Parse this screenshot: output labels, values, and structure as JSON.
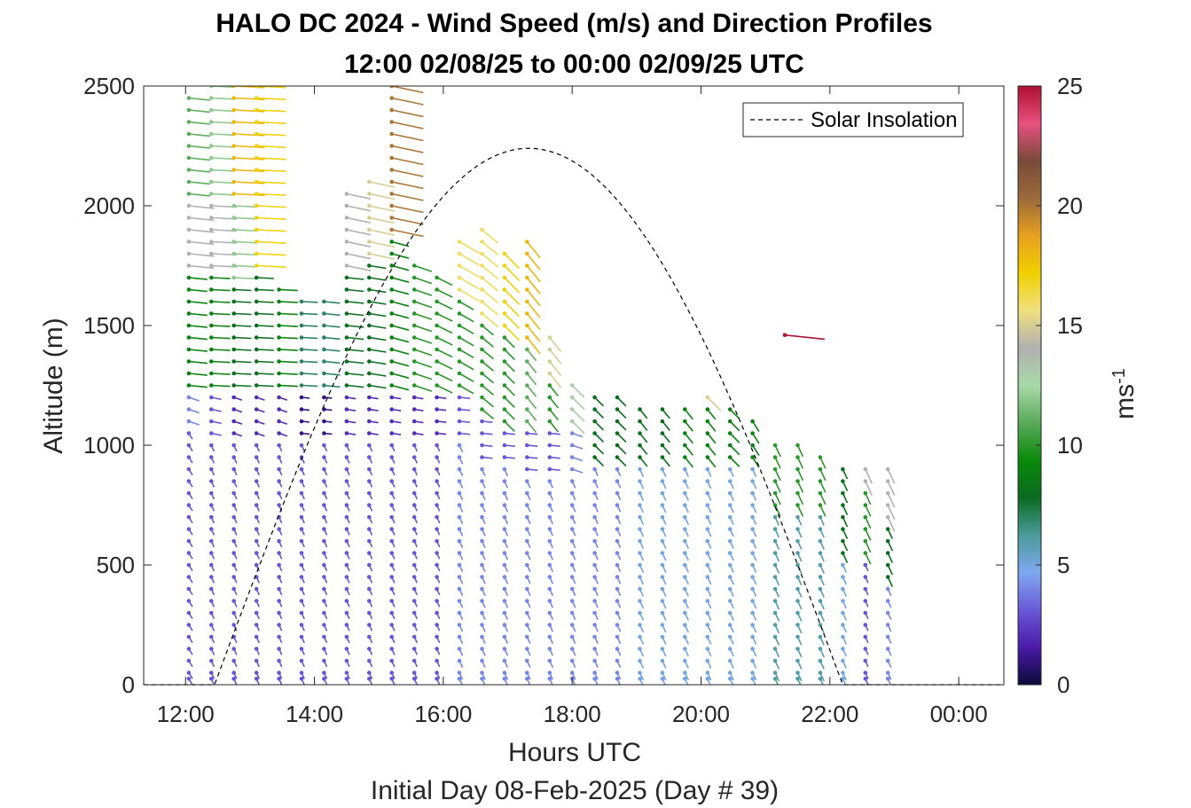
{
  "chart_data": {
    "type": "wind_barb_profile",
    "title": "HALO DC 2024 - Wind Speed (m/s) and Direction Profiles",
    "subtitle": "12:00 02/08/25 to 00:00 02/09/25  UTC",
    "xlabel": "Hours UTC",
    "xlabel2": "Initial Day 08-Feb-2025 (Day # 39)",
    "ylabel": "Altitude (m)",
    "x_ticks": [
      "12:00",
      "14:00",
      "16:00",
      "18:00",
      "20:00",
      "22:00",
      "00:00"
    ],
    "x_tick_hours": [
      12,
      14,
      16,
      18,
      20,
      22,
      24
    ],
    "xlim_hours": [
      11.35,
      24.7
    ],
    "y_ticks": [
      "0",
      "500",
      "1000",
      "1500",
      "2000",
      "2500"
    ],
    "y_tick_values": [
      0,
      500,
      1000,
      1500,
      2000,
      2500
    ],
    "ylim": [
      0,
      2500
    ],
    "colorbar": {
      "label": "ms",
      "label_exponent": "-1",
      "ticks": [
        "0",
        "5",
        "10",
        "15",
        "20",
        "25"
      ],
      "tick_values": [
        0,
        5,
        10,
        15,
        20,
        25
      ],
      "range": [
        0,
        25
      ],
      "stops": [
        "#0b0b3a",
        "#4a1aa8",
        "#6a5ad8",
        "#7fa8f0",
        "#4a9a9a",
        "#0a6a20",
        "#0a8a0a",
        "#5aaa5a",
        "#a8d8a8",
        "#b0b0b0",
        "#f0e080",
        "#f0d000",
        "#e8a020",
        "#9a6a3a",
        "#7a4a3a",
        "#e85080",
        "#b01030"
      ]
    },
    "legend": {
      "label": "Solar Insolation",
      "position": "top-right",
      "style": "dashed black"
    },
    "solar_insolation": {
      "rise_hour": 12.45,
      "peak_hour": 17.3,
      "set_hour": 22.2,
      "peak_altitude_scaled": 2240
    },
    "profile_hours": [
      12.05,
      12.4,
      12.75,
      13.1,
      13.45,
      13.8,
      14.15,
      14.5,
      14.85,
      15.2,
      15.55,
      15.9,
      16.25,
      16.6,
      16.95,
      17.3,
      17.65,
      18.0,
      18.35,
      18.7,
      19.05,
      19.4,
      19.75,
      20.1,
      20.45,
      20.8,
      21.15,
      21.5,
      21.85,
      22.2,
      22.55,
      22.9
    ],
    "wind_profiles": [
      {
        "hour": 12.05,
        "top_m": 2480,
        "layers": [
          {
            "from_m": 0,
            "to_m": 1080,
            "speed": 3,
            "dir": 20
          },
          {
            "from_m": 1080,
            "to_m": 1230,
            "speed": 4,
            "dir": 60
          },
          {
            "from_m": 1230,
            "to_m": 1720,
            "speed": 9,
            "dir": 80
          },
          {
            "from_m": 1720,
            "to_m": 2000,
            "speed": 14,
            "dir": 80
          },
          {
            "from_m": 2000,
            "to_m": 2480,
            "speed": 11,
            "dir": 80
          }
        ]
      },
      {
        "hour": 12.4,
        "top_m": 2500,
        "layers": [
          {
            "from_m": 0,
            "to_m": 1000,
            "speed": 3,
            "dir": 15
          },
          {
            "from_m": 1000,
            "to_m": 1230,
            "speed": 3,
            "dir": 70
          },
          {
            "from_m": 1230,
            "to_m": 1720,
            "speed": 9,
            "dir": 85
          },
          {
            "from_m": 1720,
            "to_m": 2000,
            "speed": 14,
            "dir": 85
          },
          {
            "from_m": 2000,
            "to_m": 2500,
            "speed": 12,
            "dir": 85
          }
        ]
      },
      {
        "hour": 12.75,
        "top_m": 2500,
        "layers": [
          {
            "from_m": 0,
            "to_m": 1000,
            "speed": 3,
            "dir": 15
          },
          {
            "from_m": 1000,
            "to_m": 1230,
            "speed": 2,
            "dir": 60
          },
          {
            "from_m": 1230,
            "to_m": 1650,
            "speed": 8,
            "dir": 85
          },
          {
            "from_m": 1650,
            "to_m": 2000,
            "speed": 12,
            "dir": 85
          },
          {
            "from_m": 2000,
            "to_m": 2500,
            "speed": 18,
            "dir": 85
          }
        ]
      },
      {
        "hour": 13.1,
        "top_m": 2500,
        "layers": [
          {
            "from_m": 0,
            "to_m": 1000,
            "speed": 3,
            "dir": 15
          },
          {
            "from_m": 1000,
            "to_m": 1230,
            "speed": 2,
            "dir": 60
          },
          {
            "from_m": 1230,
            "to_m": 1700,
            "speed": 8,
            "dir": 85
          },
          {
            "from_m": 1700,
            "to_m": 2500,
            "speed": 17,
            "dir": 85
          }
        ]
      },
      {
        "hour": 13.45,
        "top_m": 1660,
        "layers": [
          {
            "from_m": 0,
            "to_m": 1000,
            "speed": 3,
            "dir": 15
          },
          {
            "from_m": 1000,
            "to_m": 1230,
            "speed": 2,
            "dir": 60
          },
          {
            "from_m": 1230,
            "to_m": 1660,
            "speed": 9,
            "dir": 85
          }
        ]
      },
      {
        "hour": 13.8,
        "top_m": 1620,
        "layers": [
          {
            "from_m": 0,
            "to_m": 1000,
            "speed": 3,
            "dir": 15
          },
          {
            "from_m": 1000,
            "to_m": 1230,
            "speed": 1,
            "dir": 80
          },
          {
            "from_m": 1230,
            "to_m": 1620,
            "speed": 7,
            "dir": 85
          }
        ]
      },
      {
        "hour": 14.15,
        "top_m": 1630,
        "layers": [
          {
            "from_m": 0,
            "to_m": 1000,
            "speed": 3,
            "dir": 15
          },
          {
            "from_m": 1000,
            "to_m": 1230,
            "speed": 1,
            "dir": 80
          },
          {
            "from_m": 1230,
            "to_m": 1630,
            "speed": 7,
            "dir": 80
          }
        ]
      },
      {
        "hour": 14.5,
        "top_m": 2060,
        "layers": [
          {
            "from_m": 0,
            "to_m": 1000,
            "speed": 3,
            "dir": 15
          },
          {
            "from_m": 1000,
            "to_m": 1230,
            "speed": 2,
            "dir": 75
          },
          {
            "from_m": 1230,
            "to_m": 1700,
            "speed": 8,
            "dir": 80
          },
          {
            "from_m": 1700,
            "to_m": 2060,
            "speed": 14,
            "dir": 70
          }
        ]
      },
      {
        "hour": 14.85,
        "top_m": 2100,
        "layers": [
          {
            "from_m": 0,
            "to_m": 1000,
            "speed": 3,
            "dir": 15
          },
          {
            "from_m": 1000,
            "to_m": 1230,
            "speed": 2,
            "dir": 75
          },
          {
            "from_m": 1230,
            "to_m": 1750,
            "speed": 8,
            "dir": 75
          },
          {
            "from_m": 1750,
            "to_m": 2100,
            "speed": 15,
            "dir": 70
          }
        ]
      },
      {
        "hour": 15.2,
        "top_m": 2500,
        "layers": [
          {
            "from_m": 0,
            "to_m": 1000,
            "speed": 3,
            "dir": 15
          },
          {
            "from_m": 1000,
            "to_m": 1230,
            "speed": 2,
            "dir": 75
          },
          {
            "from_m": 1230,
            "to_m": 1850,
            "speed": 9,
            "dir": 65
          },
          {
            "from_m": 1850,
            "to_m": 2500,
            "speed": 20,
            "dir": 70
          }
        ]
      },
      {
        "hour": 15.55,
        "top_m": 1780,
        "layers": [
          {
            "from_m": 0,
            "to_m": 1000,
            "speed": 3,
            "dir": 15
          },
          {
            "from_m": 1000,
            "to_m": 1200,
            "speed": 2,
            "dir": 75
          },
          {
            "from_m": 1200,
            "to_m": 1780,
            "speed": 10,
            "dir": 60
          }
        ]
      },
      {
        "hour": 15.9,
        "top_m": 1700,
        "layers": [
          {
            "from_m": 0,
            "to_m": 1000,
            "speed": 3,
            "dir": 15
          },
          {
            "from_m": 1000,
            "to_m": 1200,
            "speed": 2,
            "dir": 80
          },
          {
            "from_m": 1200,
            "to_m": 1700,
            "speed": 10,
            "dir": 50
          }
        ]
      },
      {
        "hour": 16.25,
        "top_m": 1880,
        "layers": [
          {
            "from_m": 0,
            "to_m": 1000,
            "speed": 4,
            "dir": 15
          },
          {
            "from_m": 1000,
            "to_m": 1200,
            "speed": 3,
            "dir": 80
          },
          {
            "from_m": 1200,
            "to_m": 1600,
            "speed": 10,
            "dir": 45
          },
          {
            "from_m": 1600,
            "to_m": 1880,
            "speed": 16,
            "dir": 45
          }
        ]
      },
      {
        "hour": 16.6,
        "top_m": 1930,
        "layers": [
          {
            "from_m": 0,
            "to_m": 900,
            "speed": 4,
            "dir": 15
          },
          {
            "from_m": 900,
            "to_m": 1100,
            "speed": 3,
            "dir": 80
          },
          {
            "from_m": 1100,
            "to_m": 1500,
            "speed": 10,
            "dir": 35
          },
          {
            "from_m": 1500,
            "to_m": 1930,
            "speed": 16,
            "dir": 35
          }
        ]
      },
      {
        "hour": 16.95,
        "top_m": 1800,
        "layers": [
          {
            "from_m": 0,
            "to_m": 900,
            "speed": 4,
            "dir": 15
          },
          {
            "from_m": 900,
            "to_m": 1050,
            "speed": 3,
            "dir": 80
          },
          {
            "from_m": 1050,
            "to_m": 1450,
            "speed": 10,
            "dir": 30
          },
          {
            "from_m": 1450,
            "to_m": 1800,
            "speed": 17,
            "dir": 30
          }
        ]
      },
      {
        "hour": 17.3,
        "top_m": 1860,
        "layers": [
          {
            "from_m": 0,
            "to_m": 850,
            "speed": 4,
            "dir": 15
          },
          {
            "from_m": 850,
            "to_m": 1050,
            "speed": 3,
            "dir": 80
          },
          {
            "from_m": 1050,
            "to_m": 1400,
            "speed": 11,
            "dir": 25
          },
          {
            "from_m": 1400,
            "to_m": 1860,
            "speed": 18,
            "dir": 25
          }
        ]
      },
      {
        "hour": 17.65,
        "top_m": 1450,
        "layers": [
          {
            "from_m": 0,
            "to_m": 850,
            "speed": 4,
            "dir": 15
          },
          {
            "from_m": 850,
            "to_m": 1050,
            "speed": 3,
            "dir": 80
          },
          {
            "from_m": 1050,
            "to_m": 1250,
            "speed": 10,
            "dir": 25
          },
          {
            "from_m": 1250,
            "to_m": 1450,
            "speed": 15,
            "dir": 25
          }
        ]
      },
      {
        "hour": 18.0,
        "top_m": 1280,
        "layers": [
          {
            "from_m": 0,
            "to_m": 850,
            "speed": 4,
            "dir": 15
          },
          {
            "from_m": 850,
            "to_m": 1050,
            "speed": 4,
            "dir": 60
          },
          {
            "from_m": 1050,
            "to_m": 1280,
            "speed": 13,
            "dir": 30
          }
        ]
      },
      {
        "hour": 18.35,
        "top_m": 1200,
        "layers": [
          {
            "from_m": 0,
            "to_m": 900,
            "speed": 4,
            "dir": 15
          },
          {
            "from_m": 900,
            "to_m": 1200,
            "speed": 8,
            "dir": 30
          }
        ]
      },
      {
        "hour": 18.7,
        "top_m": 1200,
        "layers": [
          {
            "from_m": 0,
            "to_m": 900,
            "speed": 4,
            "dir": 15
          },
          {
            "from_m": 900,
            "to_m": 1200,
            "speed": 8,
            "dir": 30
          }
        ]
      },
      {
        "hour": 19.05,
        "top_m": 1190,
        "layers": [
          {
            "from_m": 0,
            "to_m": 900,
            "speed": 5,
            "dir": 15
          },
          {
            "from_m": 900,
            "to_m": 1190,
            "speed": 8,
            "dir": 25
          }
        ]
      },
      {
        "hour": 19.4,
        "top_m": 1180,
        "layers": [
          {
            "from_m": 0,
            "to_m": 900,
            "speed": 5,
            "dir": 15
          },
          {
            "from_m": 900,
            "to_m": 1180,
            "speed": 8,
            "dir": 25
          }
        ]
      },
      {
        "hour": 19.75,
        "top_m": 1170,
        "layers": [
          {
            "from_m": 0,
            "to_m": 900,
            "speed": 5,
            "dir": 15
          },
          {
            "from_m": 900,
            "to_m": 1170,
            "speed": 9,
            "dir": 25
          }
        ]
      },
      {
        "hour": 20.1,
        "top_m": 1230,
        "layers": [
          {
            "from_m": 0,
            "to_m": 900,
            "speed": 5,
            "dir": 15
          },
          {
            "from_m": 900,
            "to_m": 1150,
            "speed": 9,
            "dir": 25
          },
          {
            "from_m": 1150,
            "to_m": 1230,
            "speed": 15,
            "dir": 30
          }
        ]
      },
      {
        "hour": 20.45,
        "top_m": 1150,
        "layers": [
          {
            "from_m": 0,
            "to_m": 900,
            "speed": 5,
            "dir": 15
          },
          {
            "from_m": 900,
            "to_m": 1150,
            "speed": 9,
            "dir": 30
          }
        ]
      },
      {
        "hour": 20.8,
        "top_m": 1130,
        "layers": [
          {
            "from_m": 0,
            "to_m": 900,
            "speed": 5,
            "dir": 15
          },
          {
            "from_m": 900,
            "to_m": 1130,
            "speed": 9,
            "dir": 20
          }
        ]
      },
      {
        "hour": 21.15,
        "top_m": 1000,
        "layers": [
          {
            "from_m": 0,
            "to_m": 700,
            "speed": 6,
            "dir": 15
          },
          {
            "from_m": 700,
            "to_m": 1000,
            "speed": 10,
            "dir": 15
          }
        ]
      },
      {
        "hour": 21.5,
        "top_m": 1000,
        "layers": [
          {
            "from_m": 0,
            "to_m": 700,
            "speed": 6,
            "dir": 15
          },
          {
            "from_m": 700,
            "to_m": 1000,
            "speed": 10,
            "dir": 15
          }
        ]
      },
      {
        "hour": 21.85,
        "top_m": 960,
        "layers": [
          {
            "from_m": 0,
            "to_m": 700,
            "speed": 6,
            "dir": 15
          },
          {
            "from_m": 700,
            "to_m": 960,
            "speed": 10,
            "dir": 15
          }
        ]
      },
      {
        "hour": 22.2,
        "top_m": 940,
        "layers": [
          {
            "from_m": 0,
            "to_m": 500,
            "speed": 5,
            "dir": 15
          },
          {
            "from_m": 500,
            "to_m": 940,
            "speed": 8,
            "dir": 15
          }
        ]
      },
      {
        "hour": 22.55,
        "top_m": 920,
        "layers": [
          {
            "from_m": 0,
            "to_m": 500,
            "speed": 3,
            "dir": 15
          },
          {
            "from_m": 500,
            "to_m": 800,
            "speed": 10,
            "dir": 15
          },
          {
            "from_m": 800,
            "to_m": 920,
            "speed": 14,
            "dir": 15
          }
        ]
      },
      {
        "hour": 22.9,
        "top_m": 920,
        "layers": [
          {
            "from_m": 0,
            "to_m": 400,
            "speed": 4,
            "dir": 15
          },
          {
            "from_m": 400,
            "to_m": 650,
            "speed": 8,
            "dir": 15
          },
          {
            "from_m": 650,
            "to_m": 920,
            "speed": 14,
            "dir": 15
          }
        ]
      }
    ],
    "isolated_barbs": [
      {
        "hour": 21.3,
        "alt_m": 1460,
        "speed": 25,
        "dir": 80
      }
    ]
  }
}
